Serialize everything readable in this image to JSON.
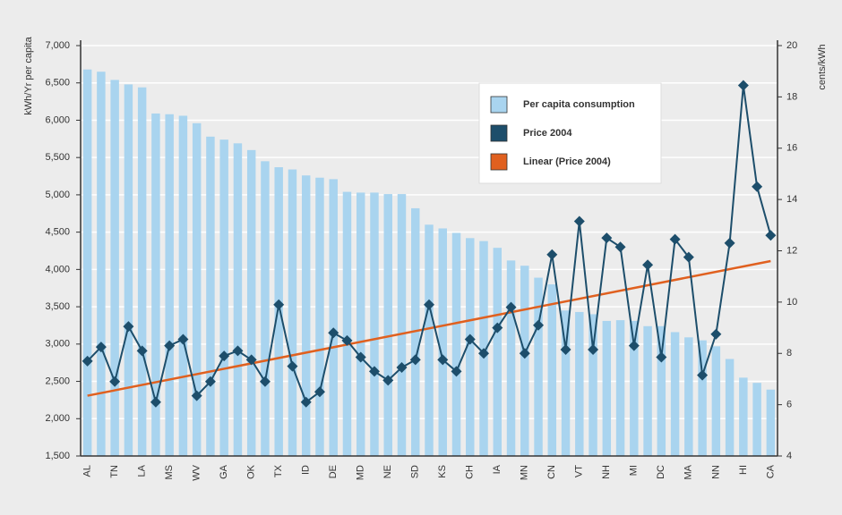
{
  "chart_data": {
    "type": "bar",
    "y_label": "kWh/Yr per capita",
    "y2_label": "cents/kWh",
    "categories": [
      "AL",
      null,
      "TN",
      null,
      "LA",
      null,
      "MS",
      null,
      "WV",
      null,
      "GA",
      null,
      "OK",
      null,
      "TX",
      null,
      "ID",
      null,
      "DE",
      null,
      "MD",
      null,
      "NE",
      null,
      "SD",
      null,
      "KS",
      null,
      "CH",
      null,
      "IA",
      null,
      "MN",
      null,
      "CN",
      null,
      "VT",
      null,
      "NH",
      null,
      "MI",
      null,
      "DC",
      null,
      "MA",
      null,
      "NN",
      null,
      "HI",
      null,
      "CA"
    ],
    "series": [
      {
        "name": "Per capita consumption",
        "color": "#a9d4ef",
        "values": [
          6680,
          6650,
          6540,
          6480,
          6440,
          6090,
          6080,
          6060,
          5960,
          5780,
          5740,
          5690,
          5600,
          5450,
          5370,
          5340,
          5260,
          5230,
          5210,
          5040,
          5030,
          5030,
          5010,
          5010,
          4820,
          4600,
          4550,
          4490,
          4420,
          4380,
          4290,
          4120,
          4050,
          3890,
          3800,
          3450,
          3430,
          3400,
          3310,
          3320,
          3310,
          3240,
          3240,
          3160,
          3090,
          3050,
          2970,
          2800,
          2550,
          2480,
          2390
        ]
      },
      {
        "name": "Price 2004",
        "color": "#1d4e6b",
        "axis": "y2",
        "type": "line",
        "values": [
          7.7,
          8.25,
          6.9,
          9.05,
          8.1,
          6.1,
          8.3,
          8.55,
          6.35,
          6.9,
          7.9,
          8.1,
          7.75,
          6.9,
          9.9,
          7.5,
          6.1,
          6.5,
          8.8,
          8.5,
          7.85,
          7.3,
          6.95,
          7.45,
          7.75,
          9.9,
          7.75,
          7.3,
          8.55,
          8.0,
          9.0,
          9.8,
          8.0,
          9.1,
          11.85,
          8.15,
          13.15,
          8.15,
          12.5,
          12.15,
          8.3,
          11.45,
          7.85,
          12.45,
          11.75,
          7.15,
          8.75,
          12.3,
          18.45,
          14.5,
          12.6
        ]
      }
    ],
    "trendline": {
      "name": "Linear (Price 2004)",
      "color": "#e0601f",
      "axis": "y2",
      "start": 6.35,
      "end": 11.6
    },
    "ylim": [
      1500,
      7000
    ],
    "yticks": [
      {
        "value": 1500,
        "label": "1,500"
      },
      {
        "value": 2000,
        "label": "2,000"
      },
      {
        "value": 2500,
        "label": "2,500"
      },
      {
        "value": 3000,
        "label": "3,000"
      },
      {
        "value": 3500,
        "label": "3,500"
      },
      {
        "value": 4000,
        "label": "4,000"
      },
      {
        "value": 4500,
        "label": "4,500"
      },
      {
        "value": 5000,
        "label": "5,000"
      },
      {
        "value": 5500,
        "label": "5,500"
      },
      {
        "value": 6000,
        "label": "6,000"
      },
      {
        "value": 6500,
        "label": "6,500"
      },
      {
        "value": 7000,
        "label": "7,000"
      }
    ],
    "y2lim": [
      4,
      20
    ],
    "y2ticks": [
      4,
      6,
      8,
      10,
      12,
      14,
      16,
      18,
      20
    ],
    "grid": true
  }
}
